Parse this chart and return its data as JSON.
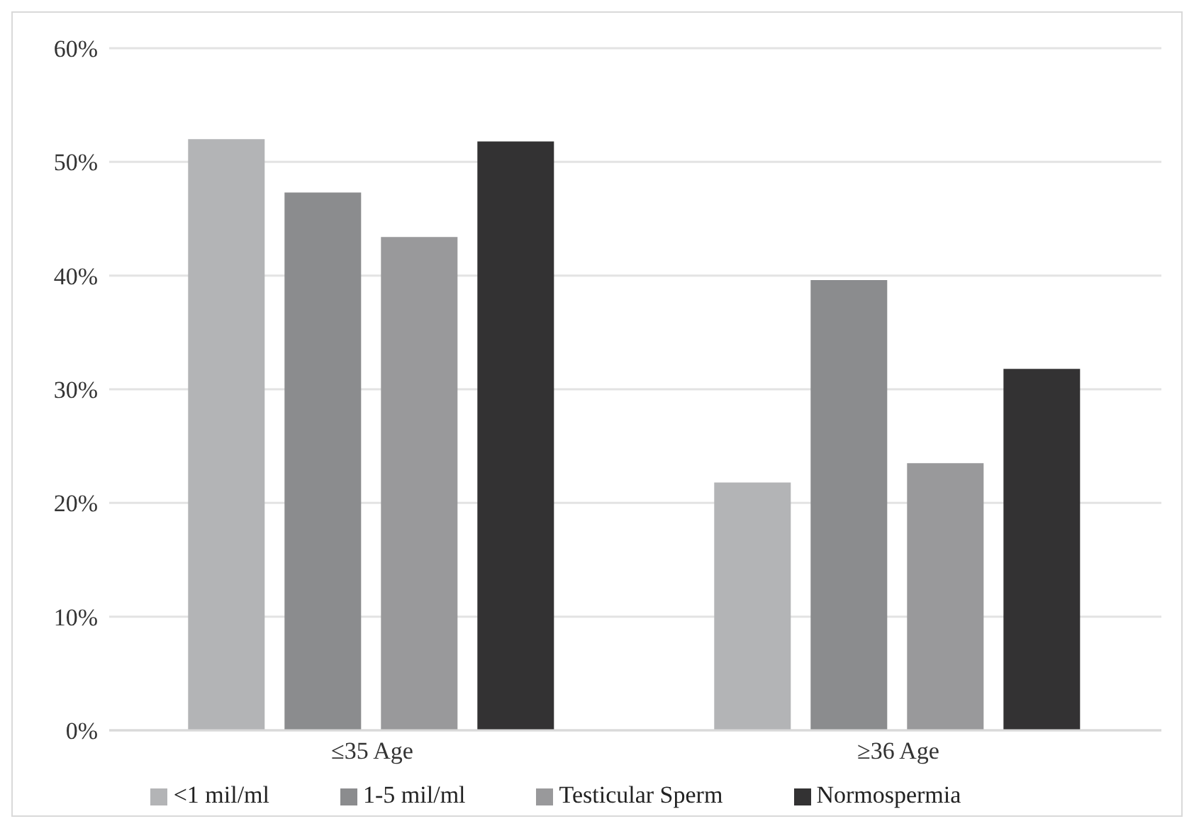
{
  "chart_data": {
    "type": "bar",
    "categories": [
      "≤35 Age",
      "≥36 Age"
    ],
    "series": [
      {
        "name": "<1 mil/ml",
        "color": "#b3b4b6",
        "values": [
          52.0,
          21.8
        ]
      },
      {
        "name": "1-5 mil/ml",
        "color": "#8b8c8e",
        "values": [
          47.3,
          39.6
        ]
      },
      {
        "name": "Testicular Sperm",
        "color": "#99999b",
        "values": [
          43.4,
          23.5
        ]
      },
      {
        "name": "Normospermia",
        "color": "#333233",
        "values": [
          51.8,
          31.8
        ]
      }
    ],
    "ylim": [
      0,
      60
    ],
    "yticks": [
      {
        "value": 0,
        "label": "0%"
      },
      {
        "value": 10,
        "label": "10%"
      },
      {
        "value": 20,
        "label": "20%"
      },
      {
        "value": 30,
        "label": "30%"
      },
      {
        "value": 40,
        "label": "40%"
      },
      {
        "value": 50,
        "label": "50%"
      },
      {
        "value": 60,
        "label": "60%"
      }
    ],
    "grid": "y",
    "legend": "bottom"
  }
}
